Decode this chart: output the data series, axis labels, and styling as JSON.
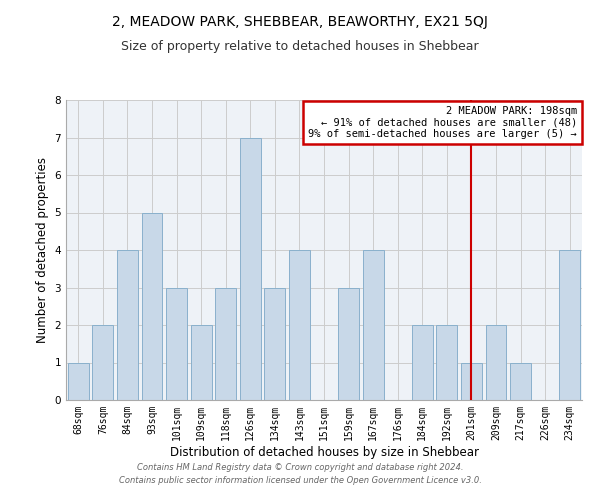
{
  "title": "2, MEADOW PARK, SHEBBEAR, BEAWORTHY, EX21 5QJ",
  "subtitle": "Size of property relative to detached houses in Shebbear",
  "xlabel": "Distribution of detached houses by size in Shebbear",
  "ylabel": "Number of detached properties",
  "bar_labels": [
    "68sqm",
    "76sqm",
    "84sqm",
    "93sqm",
    "101sqm",
    "109sqm",
    "118sqm",
    "126sqm",
    "134sqm",
    "143sqm",
    "151sqm",
    "159sqm",
    "167sqm",
    "176sqm",
    "184sqm",
    "192sqm",
    "201sqm",
    "209sqm",
    "217sqm",
    "226sqm",
    "234sqm"
  ],
  "bar_values": [
    1,
    2,
    4,
    5,
    3,
    2,
    3,
    7,
    3,
    4,
    0,
    3,
    4,
    0,
    2,
    2,
    1,
    2,
    1,
    0,
    4
  ],
  "bar_color": "#c8d8e8",
  "bar_edge_color": "#8ab0cc",
  "ylim": [
    0,
    8
  ],
  "yticks": [
    0,
    1,
    2,
    3,
    4,
    5,
    6,
    7,
    8
  ],
  "grid_color": "#cccccc",
  "bg_color": "#eef2f7",
  "annotation_text": "2 MEADOW PARK: 198sqm\n← 91% of detached houses are smaller (48)\n9% of semi-detached houses are larger (5) →",
  "vline_x_index": 16,
  "vline_color": "#cc0000",
  "annotation_box_color": "#cc0000",
  "footer_line1": "Contains HM Land Registry data © Crown copyright and database right 2024.",
  "footer_line2": "Contains public sector information licensed under the Open Government Licence v3.0.",
  "title_fontsize": 10,
  "subtitle_fontsize": 9,
  "axis_label_fontsize": 8.5,
  "tick_fontsize": 7,
  "annotation_fontsize": 7.5,
  "footer_fontsize": 6
}
